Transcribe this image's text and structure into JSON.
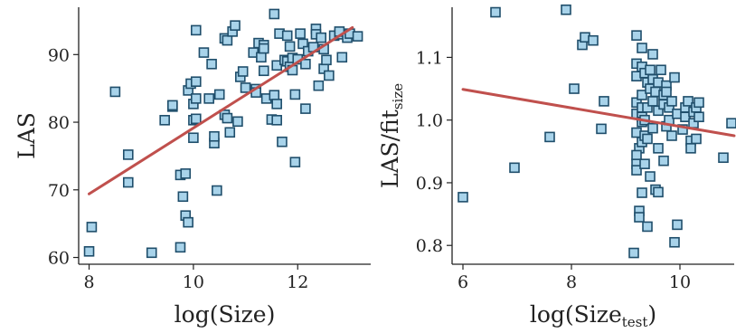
{
  "colors": {
    "marker_fill": "#a8d3ea",
    "marker_edge": "#1f4e6b",
    "fit_line": "#c0504d",
    "axis": "#222222",
    "text": "#222222"
  },
  "chart_data": [
    {
      "type": "scatter",
      "xlabel": "log(Size)",
      "ylabel": "LAS",
      "xlim": [
        7.8,
        13.4
      ],
      "ylim": [
        59,
        97
      ],
      "xticks": [
        8,
        10,
        12
      ],
      "yticks": [
        60,
        70,
        80,
        90
      ],
      "xtick_labels": [
        "8",
        "10",
        "12"
      ],
      "ytick_labels": [
        "60",
        "70",
        "80",
        "90"
      ],
      "grid": false,
      "marker": "square",
      "points": [
        [
          8.0,
          60.9
        ],
        [
          8.05,
          64.5
        ],
        [
          8.5,
          84.5
        ],
        [
          8.75,
          75.2
        ],
        [
          8.75,
          71.1
        ],
        [
          9.2,
          60.7
        ],
        [
          9.45,
          80.3
        ],
        [
          9.6,
          82.3
        ],
        [
          9.6,
          82.5
        ],
        [
          9.75,
          72.2
        ],
        [
          9.75,
          61.5
        ],
        [
          9.8,
          69.0
        ],
        [
          9.85,
          72.4
        ],
        [
          9.85,
          66.2
        ],
        [
          9.9,
          65.2
        ],
        [
          9.9,
          84.7
        ],
        [
          9.95,
          85.7
        ],
        [
          10.0,
          82.7
        ],
        [
          10.0,
          80.3
        ],
        [
          10.0,
          77.7
        ],
        [
          10.05,
          80.5
        ],
        [
          10.05,
          83.5
        ],
        [
          10.05,
          93.6
        ],
        [
          10.05,
          86.0
        ],
        [
          10.2,
          90.3
        ],
        [
          10.3,
          83.5
        ],
        [
          10.35,
          88.6
        ],
        [
          10.4,
          76.9
        ],
        [
          10.4,
          77.9
        ],
        [
          10.45,
          69.9
        ],
        [
          10.5,
          84.1
        ],
        [
          10.6,
          81.1
        ],
        [
          10.6,
          92.4
        ],
        [
          10.65,
          92.1
        ],
        [
          10.65,
          80.6
        ],
        [
          10.7,
          78.5
        ],
        [
          10.75,
          93.4
        ],
        [
          10.8,
          94.3
        ],
        [
          10.85,
          80.1
        ],
        [
          10.9,
          86.7
        ],
        [
          10.95,
          87.5
        ],
        [
          11.0,
          85.1
        ],
        [
          11.15,
          90.3
        ],
        [
          11.2,
          84.9
        ],
        [
          11.2,
          84.4
        ],
        [
          11.25,
          91.7
        ],
        [
          11.3,
          89.6
        ],
        [
          11.35,
          91.4
        ],
        [
          11.35,
          90.9
        ],
        [
          11.35,
          87.6
        ],
        [
          11.4,
          83.5
        ],
        [
          11.5,
          80.4
        ],
        [
          11.55,
          84.0
        ],
        [
          11.55,
          96.0
        ],
        [
          11.6,
          88.4
        ],
        [
          11.6,
          82.7
        ],
        [
          11.6,
          80.3
        ],
        [
          11.65,
          93.1
        ],
        [
          11.7,
          77.1
        ],
        [
          11.75,
          89.2
        ],
        [
          11.8,
          89.0
        ],
        [
          11.8,
          92.8
        ],
        [
          11.85,
          88.2
        ],
        [
          11.85,
          91.2
        ],
        [
          11.9,
          89.5
        ],
        [
          11.9,
          87.7
        ],
        [
          11.95,
          84.1
        ],
        [
          11.95,
          74.1
        ],
        [
          12.0,
          89.3
        ],
        [
          12.05,
          93.1
        ],
        [
          12.1,
          91.6
        ],
        [
          12.15,
          88.6
        ],
        [
          12.15,
          82.0
        ],
        [
          12.2,
          90.5
        ],
        [
          12.3,
          91.1
        ],
        [
          12.35,
          93.8
        ],
        [
          12.35,
          93.0
        ],
        [
          12.4,
          85.4
        ],
        [
          12.45,
          92.5
        ],
        [
          12.5,
          87.9
        ],
        [
          12.5,
          90.8
        ],
        [
          12.55,
          89.2
        ],
        [
          12.6,
          86.9
        ],
        [
          12.7,
          92.8
        ],
        [
          12.8,
          93.0
        ],
        [
          12.8,
          93.4
        ],
        [
          12.85,
          89.6
        ],
        [
          12.95,
          92.5
        ],
        [
          13.0,
          93.1
        ],
        [
          13.15,
          92.7
        ]
      ],
      "fit_line": [
        [
          8.0,
          69.4
        ],
        [
          13.05,
          94.0
        ]
      ]
    },
    {
      "type": "scatter",
      "xlabel": "log(Size",
      "xlabel_subscript": "test",
      "xlabel_suffix": ")",
      "ylabel": "LAS/fit",
      "ylabel_subscript": "size",
      "xlim": [
        5.8,
        11.0
      ],
      "ylim": [
        0.77,
        1.18
      ],
      "xticks": [
        6,
        8,
        10
      ],
      "yticks": [
        0.8,
        0.9,
        1.0,
        1.1
      ],
      "xtick_labels": [
        "6",
        "8",
        "10"
      ],
      "ytick_labels": [
        "0.8",
        "0.9",
        "1.0",
        "1.1"
      ],
      "grid": false,
      "marker": "square",
      "points": [
        [
          6.0,
          0.877
        ],
        [
          6.6,
          1.172
        ],
        [
          6.95,
          0.924
        ],
        [
          7.6,
          0.973
        ],
        [
          7.9,
          1.176
        ],
        [
          8.05,
          1.05
        ],
        [
          8.2,
          1.12
        ],
        [
          8.25,
          1.132
        ],
        [
          8.4,
          1.127
        ],
        [
          8.55,
          0.986
        ],
        [
          8.6,
          1.03
        ],
        [
          9.15,
          0.788
        ],
        [
          9.2,
          1.135
        ],
        [
          9.2,
          1.09
        ],
        [
          9.2,
          1.07
        ],
        [
          9.2,
          1.028
        ],
        [
          9.2,
          1.01
        ],
        [
          9.2,
          0.98
        ],
        [
          9.25,
          0.955
        ],
        [
          9.2,
          0.944
        ],
        [
          9.2,
          0.93
        ],
        [
          9.2,
          0.92
        ],
        [
          9.25,
          0.855
        ],
        [
          9.25,
          0.845
        ],
        [
          9.3,
          1.115
        ],
        [
          9.3,
          1.085
        ],
        [
          9.3,
          1.04
        ],
        [
          9.3,
          1.02
        ],
        [
          9.3,
          1.005
        ],
        [
          9.3,
          0.997
        ],
        [
          9.3,
          0.965
        ],
        [
          9.3,
          0.884
        ],
        [
          9.35,
          1.075
        ],
        [
          9.35,
          1.0
        ],
        [
          9.35,
          0.975
        ],
        [
          9.35,
          0.93
        ],
        [
          9.4,
          0.83
        ],
        [
          9.4,
          1.06
        ],
        [
          9.4,
          1.02
        ],
        [
          9.4,
          0.97
        ],
        [
          9.45,
          1.08
        ],
        [
          9.45,
          1.05
        ],
        [
          9.45,
          0.91
        ],
        [
          9.5,
          1.105
        ],
        [
          9.5,
          1.065
        ],
        [
          9.5,
          1.03
        ],
        [
          9.5,
          0.987
        ],
        [
          9.55,
          1.045
        ],
        [
          9.55,
          0.889
        ],
        [
          9.6,
          1.06
        ],
        [
          9.6,
          1.015
        ],
        [
          9.6,
          0.955
        ],
        [
          9.6,
          0.885
        ],
        [
          9.65,
          1.08
        ],
        [
          9.7,
          1.04
        ],
        [
          9.7,
          1.025
        ],
        [
          9.7,
          0.935
        ],
        [
          9.75,
          1.055
        ],
        [
          9.75,
          1.045
        ],
        [
          9.75,
          0.99
        ],
        [
          9.8,
          1.02
        ],
        [
          9.8,
          1.0
        ],
        [
          9.85,
          1.03
        ],
        [
          9.85,
          0.975
        ],
        [
          9.9,
          1.068
        ],
        [
          9.9,
          0.805
        ],
        [
          9.95,
          0.833
        ],
        [
          9.95,
          1.01
        ],
        [
          10.05,
          0.985
        ],
        [
          10.1,
          1.02
        ],
        [
          10.1,
          1.005
        ],
        [
          10.15,
          1.03
        ],
        [
          10.2,
          0.967
        ],
        [
          10.2,
          0.955
        ],
        [
          10.25,
          0.995
        ],
        [
          10.25,
          1.013
        ],
        [
          10.3,
          1.02
        ],
        [
          10.3,
          0.97
        ],
        [
          10.35,
          1.028
        ],
        [
          10.35,
          1.005
        ],
        [
          10.8,
          0.94
        ],
        [
          10.95,
          0.995
        ]
      ],
      "fit_line": [
        [
          6.0,
          1.049
        ],
        [
          11.0,
          0.975
        ]
      ]
    }
  ]
}
